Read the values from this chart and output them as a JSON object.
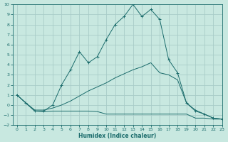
{
  "xlabel": "Humidex (Indice chaleur)",
  "bg_color": "#c8e8e0",
  "grid_color": "#a8ccc8",
  "line_color": "#1a6b6b",
  "xlim": [
    -0.5,
    23
  ],
  "ylim": [
    -2,
    10
  ],
  "xticks": [
    0,
    1,
    2,
    3,
    4,
    5,
    6,
    7,
    8,
    9,
    10,
    11,
    12,
    13,
    14,
    15,
    16,
    17,
    18,
    19,
    20,
    21,
    22,
    23
  ],
  "yticks": [
    -2,
    -1,
    0,
    1,
    2,
    3,
    4,
    5,
    6,
    7,
    8,
    9,
    10
  ],
  "series_main": {
    "x": [
      0,
      1,
      2,
      3,
      4,
      5,
      6,
      7,
      8,
      9,
      10,
      11,
      12,
      13,
      14,
      15,
      16,
      17,
      18,
      19,
      20,
      21,
      22,
      23
    ],
    "y": [
      1.0,
      0.2,
      -0.6,
      -0.6,
      0.0,
      2.0,
      3.5,
      5.3,
      4.2,
      4.8,
      6.5,
      8.0,
      8.8,
      10.0,
      8.8,
      9.5,
      8.5,
      4.5,
      3.2,
      0.2,
      -0.6,
      -0.9,
      -1.3,
      -1.4
    ]
  },
  "series_flat": {
    "x": [
      0,
      1,
      2,
      3,
      4,
      5,
      6,
      7,
      8,
      9,
      10,
      11,
      12,
      13,
      14,
      15,
      16,
      17,
      18,
      19,
      20,
      21,
      22,
      23
    ],
    "y": [
      1.0,
      0.2,
      -0.6,
      -0.65,
      -0.6,
      -0.6,
      -0.6,
      -0.6,
      -0.6,
      -0.65,
      -0.9,
      -0.9,
      -0.9,
      -0.9,
      -0.9,
      -0.9,
      -0.9,
      -0.9,
      -0.9,
      -0.9,
      -1.3,
      -1.3,
      -1.4,
      -1.4
    ]
  },
  "series_ramp": {
    "x": [
      0,
      1,
      2,
      3,
      4,
      5,
      6,
      7,
      8,
      9,
      10,
      11,
      12,
      13,
      14,
      15,
      16,
      17,
      18,
      19,
      20,
      21,
      22,
      23
    ],
    "y": [
      1.0,
      0.2,
      -0.5,
      -0.5,
      -0.3,
      0.0,
      0.4,
      0.9,
      1.4,
      1.8,
      2.2,
      2.7,
      3.1,
      3.5,
      3.8,
      4.2,
      3.2,
      3.0,
      2.5,
      0.2,
      -0.5,
      -0.9,
      -1.3,
      -1.4
    ]
  }
}
